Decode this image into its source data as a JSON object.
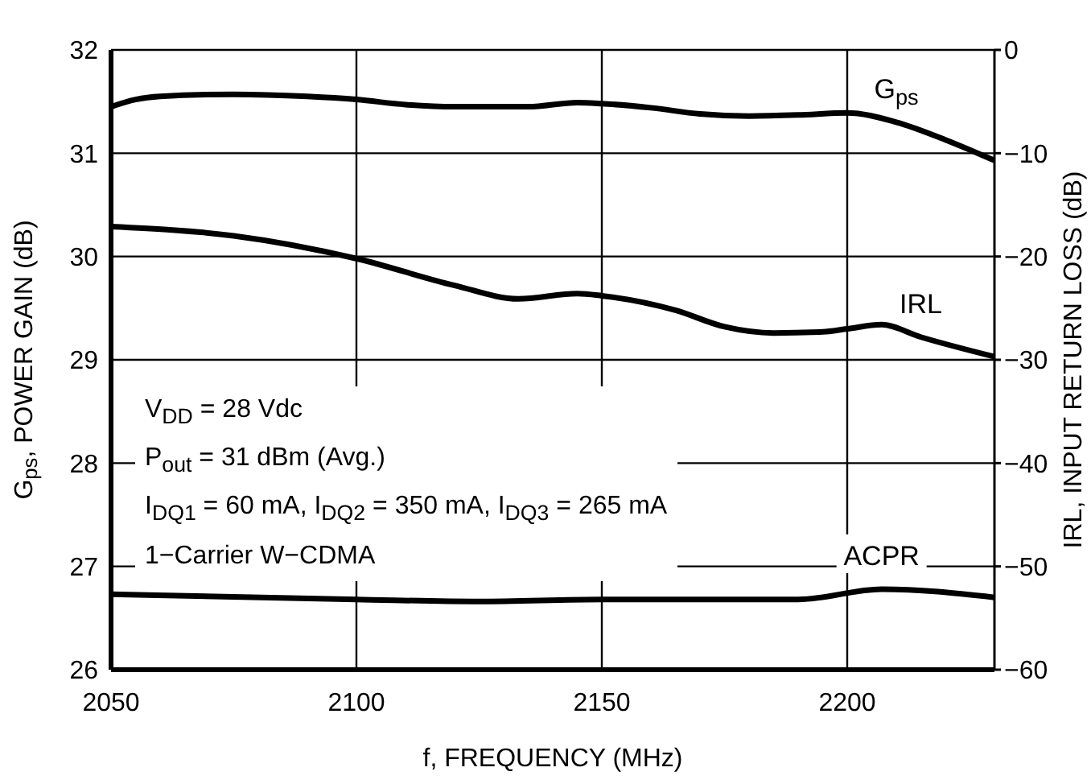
{
  "chart_data": {
    "type": "line",
    "xlabel": "f, FREQUENCY (MHz)",
    "ylabel": "G$_{ps}$, POWER GAIN (dB)",
    "y2label": "IRL, INPUT RETURN LOSS (dB)",
    "xlim": [
      2050,
      2230
    ],
    "xticks": [
      2050,
      2100,
      2150,
      2200
    ],
    "ylim": [
      26,
      32
    ],
    "yticks": [
      26,
      27,
      28,
      29,
      30,
      31,
      32
    ],
    "y2lim": [
      -60,
      0
    ],
    "y2ticks": [
      {
        "value": -60,
        "label": "−60"
      },
      {
        "value": -50,
        "label": "−50"
      },
      {
        "value": -40,
        "label": "−40"
      },
      {
        "value": -30,
        "label": "−30"
      },
      {
        "value": -20,
        "label": "−20"
      },
      {
        "value": -10,
        "label": "−10"
      },
      0
    ],
    "grid": true,
    "marker": "none",
    "line_style": "solid",
    "annotations": [
      "V$_{DD}$ = 28 Vdc",
      "P$_{out}$ = 31 dBm (Avg.)",
      "I$_{DQ1}$ = 60 mA, I$_{DQ2}$ = 350 mA, I$_{DQ3}$ = 265 mA",
      "1−Carrier W−CDMA"
    ],
    "series": [
      {
        "name": "G$_{ps}$",
        "color": "#000000",
        "x": [
          2050,
          2055,
          2060,
          2075,
          2090,
          2100,
          2110,
          2120,
          2135,
          2145,
          2150,
          2160,
          2170,
          2180,
          2190,
          2200,
          2210,
          2220,
          2230
        ],
        "values": [
          31.45,
          31.52,
          31.55,
          31.57,
          31.55,
          31.52,
          31.47,
          31.45,
          31.45,
          31.49,
          31.48,
          31.44,
          31.38,
          31.36,
          31.37,
          31.39,
          31.3,
          31.13,
          30.93
        ]
      },
      {
        "name": "IRL",
        "color": "#000000",
        "axis": "y2",
        "x": [
          2050,
          2075,
          2100,
          2120,
          2133,
          2145,
          2150,
          2165,
          2175,
          2185,
          2195,
          2200,
          2207,
          2215,
          2230
        ],
        "values": [
          -17.1,
          -18,
          -20.2,
          -22.8,
          -24.1,
          -23.6,
          -23.8,
          -25.2,
          -26.8,
          -27.4,
          -27.3,
          -27,
          -26.6,
          -27.8,
          -29.7
        ]
      },
      {
        "name": "ACPR",
        "color": "#000000",
        "axis": "y2",
        "x": [
          2050,
          2100,
          2125,
          2150,
          2190,
          2207,
          2230
        ],
        "values": [
          -52.7,
          -53.2,
          -53.4,
          -53.2,
          -53.2,
          -52.2,
          -53.0
        ]
      }
    ]
  }
}
